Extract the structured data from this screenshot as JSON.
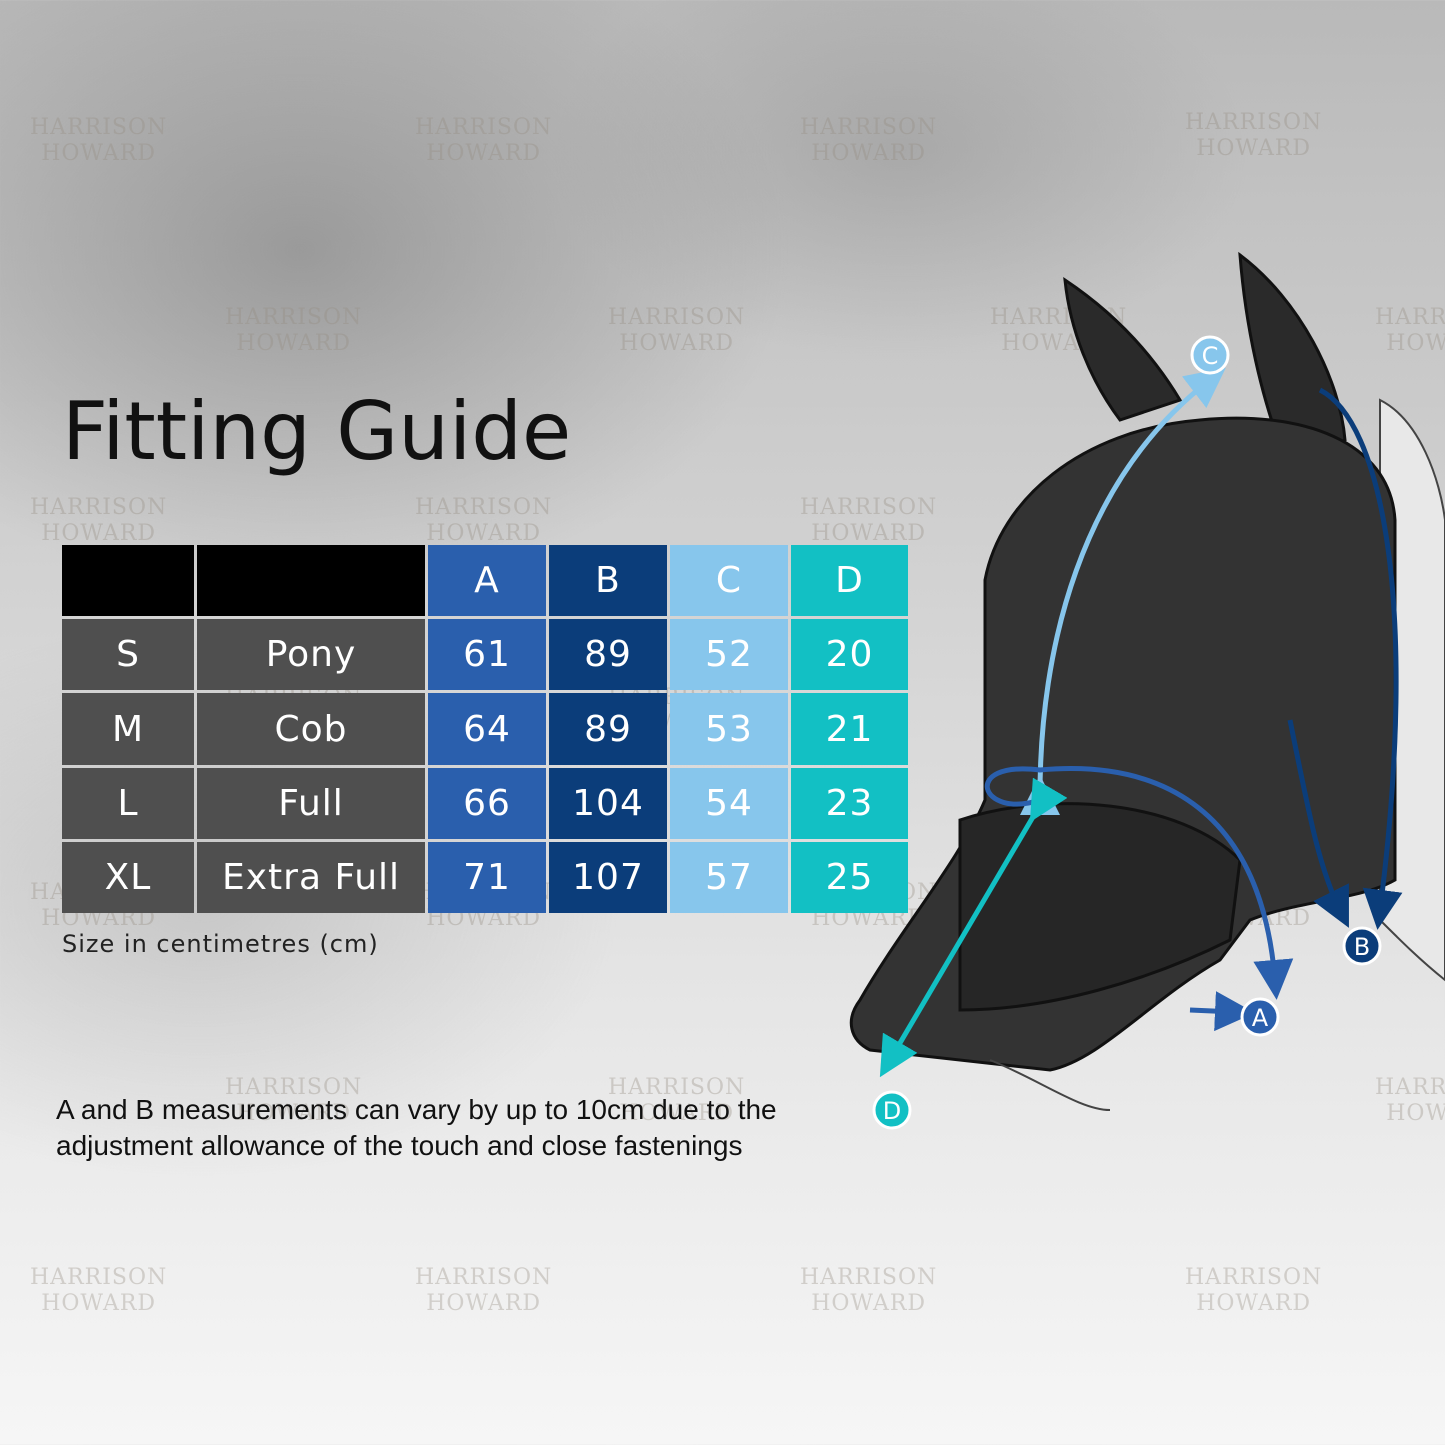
{
  "title": "Fitting Guide",
  "table": {
    "headers": [
      "",
      "",
      "A",
      "B",
      "C",
      "D"
    ],
    "rows": [
      {
        "size": "S",
        "type": "Pony",
        "A": "61",
        "B": "89",
        "C": "52",
        "D": "20"
      },
      {
        "size": "M",
        "type": "Cob",
        "A": "64",
        "B": "89",
        "C": "53",
        "D": "21"
      },
      {
        "size": "L",
        "type": "Full",
        "A": "66",
        "B": "104",
        "C": "54",
        "D": "23"
      },
      {
        "size": "XL",
        "type": "Extra Full",
        "A": "71",
        "B": "107",
        "C": "57",
        "D": "25"
      }
    ]
  },
  "unit_note": "Size in centimetres (cm)",
  "description": "A and B measurements can vary by up to 10cm due to the adjustment allowance of the touch and close fastenings",
  "diagram_labels": {
    "A": "A",
    "B": "B",
    "C": "C",
    "D": "D"
  },
  "watermark": "HARRISON HOWARD",
  "colors": {
    "A": "#2a5fad",
    "B": "#0b3d7a",
    "C": "#87c6ec",
    "D": "#12c0c4",
    "row": "#4f4f4f",
    "header": "#000000"
  }
}
